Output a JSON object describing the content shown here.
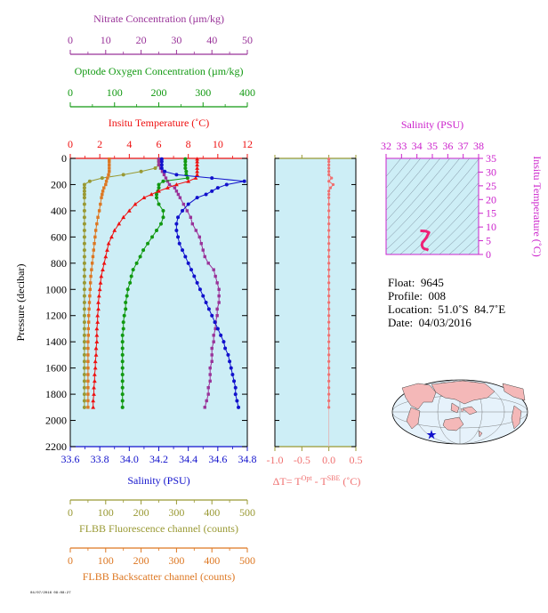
{
  "colors": {
    "nitrate": "#993399",
    "oxygen": "#119911",
    "temperature": "#ee1111",
    "salinity": "#1111cc",
    "fluorescence": "#999933",
    "backscatter": "#dd7722",
    "delta_t": "#f07070",
    "panel_bg": "#cdeef6",
    "ts_axis": "#cc22cc"
  },
  "axes_top": {
    "nitrate": {
      "title": "Nitrate Concentration (µm/kg)",
      "ticks": [
        "0",
        "10",
        "20",
        "30",
        "40",
        "50"
      ],
      "range": [
        0,
        50
      ]
    },
    "oxygen": {
      "title": "Optode Oxygen Concentration (µm/kg)",
      "ticks": [
        "0",
        "100",
        "200",
        "300",
        "400"
      ],
      "range": [
        0,
        400
      ]
    },
    "temperature": {
      "title": "Insitu Temperature (˚C)",
      "ticks": [
        "0",
        "2",
        "4",
        "6",
        "8",
        "10",
        "12"
      ],
      "range": [
        0,
        12
      ]
    }
  },
  "axes_bottom": {
    "salinity": {
      "title": "Salinity (PSU)",
      "ticks": [
        "33.6",
        "33.8",
        "34.0",
        "34.2",
        "34.4",
        "34.6",
        "34.8"
      ],
      "range": [
        33.6,
        34.8
      ]
    },
    "fluorescence": {
      "title": "FLBB Fluorescence channel (counts)",
      "ticks": [
        "0",
        "100",
        "200",
        "300",
        "400",
        "500"
      ],
      "range": [
        0,
        500
      ]
    },
    "backscatter": {
      "title": "FLBB Backscatter channel (counts)",
      "ticks": [
        "0",
        "100",
        "200",
        "300",
        "400",
        "500"
      ],
      "range": [
        0,
        500
      ]
    }
  },
  "pressure_axis": {
    "title": "Pressure (decibar)",
    "ticks": [
      "0",
      "200",
      "400",
      "600",
      "800",
      "1000",
      "1200",
      "1400",
      "1600",
      "1800",
      "2000",
      "2200"
    ],
    "range": [
      0,
      2200
    ]
  },
  "delta_panel": {
    "title_main": "ΔT= T",
    "title_sup1": "Opt",
    "title_mid": " - T",
    "title_sup2": "SBE",
    "title_unit": " (˚C)",
    "ticks": [
      "-1.0",
      "-0.5",
      "0.0",
      "0.5"
    ],
    "range": [
      -1.0,
      0.5
    ]
  },
  "ts_panel": {
    "title": "Salinity (PSU)",
    "x_ticks": [
      "32",
      "33",
      "34",
      "35",
      "36",
      "37",
      "38"
    ],
    "x_range": [
      32,
      38
    ],
    "y_label": "Insitu Temperature (˚C)",
    "y_ticks": [
      "0",
      "5",
      "10",
      "15",
      "20",
      "25",
      "30",
      "35"
    ],
    "y_range": [
      0,
      35
    ]
  },
  "info": {
    "float": "Float:  9645",
    "profile": "Profile:  008",
    "location": "Location:  51.0˚S  84.7˚E",
    "date": "Date:  04/03/2016"
  },
  "footer": "04/07/2016 09:08:27",
  "chart_data": {
    "type": "line",
    "y_variable": "pressure",
    "pressure": [
      5,
      25,
      50,
      75,
      100,
      125,
      150,
      175,
      200,
      225,
      250,
      275,
      300,
      350,
      400,
      450,
      500,
      550,
      600,
      650,
      700,
      750,
      800,
      850,
      900,
      950,
      1000,
      1050,
      1100,
      1150,
      1200,
      1250,
      1300,
      1350,
      1400,
      1450,
      1500,
      1550,
      1600,
      1650,
      1700,
      1750,
      1800,
      1850,
      1900
    ],
    "series": [
      {
        "name": "Insitu Temperature",
        "values": [
          8.6,
          8.6,
          8.6,
          8.6,
          8.6,
          8.6,
          8.5,
          8.0,
          7.2,
          6.6,
          6.0,
          5.5,
          5.0,
          4.4,
          4.0,
          3.6,
          3.3,
          3.0,
          2.8,
          2.6,
          2.5,
          2.4,
          2.3,
          2.2,
          2.1,
          2.05,
          2.0,
          1.95,
          1.9,
          1.9,
          1.85,
          1.85,
          1.8,
          1.8,
          1.8,
          1.75,
          1.75,
          1.7,
          1.7,
          1.65,
          1.65,
          1.6,
          1.6,
          1.55,
          1.55
        ]
      },
      {
        "name": "Salinity",
        "values": [
          34.22,
          34.22,
          34.22,
          34.22,
          34.24,
          34.32,
          34.56,
          34.78,
          34.66,
          34.6,
          34.56,
          34.52,
          34.46,
          34.4,
          34.36,
          34.33,
          34.32,
          34.32,
          34.33,
          34.34,
          34.36,
          34.38,
          34.4,
          34.42,
          34.44,
          34.46,
          34.48,
          34.5,
          34.52,
          34.54,
          34.56,
          34.58,
          34.6,
          34.62,
          34.64,
          34.65,
          34.67,
          34.68,
          34.69,
          34.7,
          34.71,
          34.72,
          34.72,
          34.73,
          34.74
        ]
      },
      {
        "name": "Optode Oxygen Concentration",
        "values": [
          260,
          260,
          260,
          260,
          262,
          262,
          265,
          210,
          200,
          200,
          198,
          195,
          195,
          200,
          210,
          210,
          205,
          195,
          185,
          175,
          165,
          158,
          150,
          142,
          138,
          135,
          130,
          128,
          125,
          125,
          122,
          120,
          120,
          118,
          118,
          118,
          118,
          118,
          118,
          118,
          118,
          118,
          118,
          118,
          118
        ]
      },
      {
        "name": "Nitrate Concentration",
        "values": [
          25,
          25,
          25,
          25.5,
          26,
          26.5,
          27,
          27.5,
          28,
          29.5,
          30,
          30.5,
          31,
          32,
          33,
          34,
          34.5,
          35.5,
          36.5,
          37,
          37.5,
          38,
          39,
          40.5,
          41,
          41.5,
          42,
          42,
          42,
          41.5,
          41.5,
          41,
          41,
          40.5,
          40.5,
          40,
          40,
          40,
          39.5,
          39.5,
          39.5,
          39,
          39,
          38.5,
          38
        ]
      },
      {
        "name": "FLBB Fluorescence channel",
        "values": [
          250,
          250,
          250,
          240,
          200,
          150,
          90,
          55,
          40,
          40,
          40,
          40,
          40,
          40,
          40,
          40,
          40,
          40,
          40,
          40,
          40,
          40,
          40,
          40,
          40,
          40,
          40,
          40,
          40,
          40,
          40,
          40,
          40,
          40,
          40,
          40,
          40,
          40,
          40,
          40,
          40,
          40,
          40,
          40,
          40
        ]
      },
      {
        "name": "FLBB Backscatter channel",
        "values": [
          110,
          110,
          110,
          110,
          110,
          108,
          105,
          102,
          100,
          95,
          92,
          90,
          88,
          85,
          82,
          78,
          75,
          72,
          70,
          68,
          66,
          64,
          62,
          60,
          58,
          57,
          56,
          55,
          54,
          53,
          52,
          52,
          51,
          51,
          50,
          50,
          50,
          50,
          50,
          50,
          50,
          50,
          50,
          50,
          50
        ]
      },
      {
        "name": "ΔT",
        "values": [
          0.0,
          0.0,
          0.0,
          0.0,
          0.0,
          0.0,
          0.05,
          0.0,
          0.08,
          0.03,
          0.0,
          0.0,
          0.0,
          0.0,
          0.0,
          0.0,
          0.0,
          0.0,
          0.0,
          0.0,
          0.0,
          0.0,
          0.0,
          0.0,
          0.0,
          0.0,
          0.0,
          0.0,
          0.0,
          0.0,
          0.0,
          0.0,
          0.0,
          0.0,
          0.0,
          0.0,
          0.0,
          0.0,
          0.0,
          0.0,
          0.0,
          0.0,
          0.0,
          0.0,
          0.0
        ]
      }
    ],
    "ts_curve": {
      "salinity": [
        34.74,
        34.72,
        34.7,
        34.66,
        34.6,
        34.52,
        34.44,
        34.38,
        34.34,
        34.32,
        34.36,
        34.46,
        34.6,
        34.78,
        34.56,
        34.3,
        34.22
      ],
      "temperature": [
        1.55,
        1.6,
        1.7,
        1.8,
        1.9,
        2.0,
        2.2,
        2.5,
        3.0,
        3.6,
        4.4,
        5.0,
        6.0,
        8.0,
        8.5,
        8.6,
        8.6
      ]
    }
  }
}
